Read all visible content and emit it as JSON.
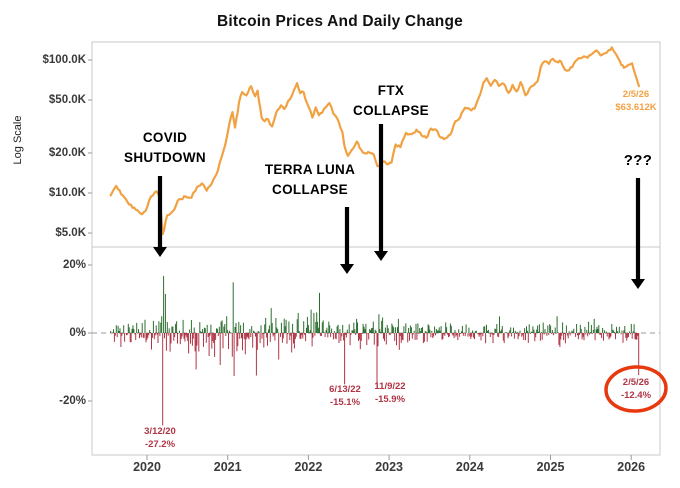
{
  "title": "Bitcoin Prices And Daily Change",
  "axes": {
    "y_label": "Log Scale",
    "price_ticks": [
      {
        "label": "$100.0K",
        "value": 100
      },
      {
        "label": "$50.0K",
        "value": 50
      },
      {
        "label": "$20.0K",
        "value": 20
      },
      {
        "label": "$10.0K",
        "value": 10
      },
      {
        "label": "$5.0K",
        "value": 5
      }
    ],
    "pct_ticks": [
      {
        "label": "20%",
        "value": 20
      },
      {
        "label": "0%",
        "value": 0
      },
      {
        "label": "-20%",
        "value": -20
      }
    ],
    "x_ticks": [
      "2020",
      "2021",
      "2022",
      "2023",
      "2024",
      "2025",
      "2026"
    ]
  },
  "annotations": {
    "covid": "COVID\nSHUTDOWN",
    "terra": "TERRA LUNA\nCOLLAPSE",
    "ftx": "FTX\nCOLLAPSE",
    "unknown": "???",
    "latest_price": "2/5/26\n$63.612K",
    "crash1": "3/12/20\n-27.2%",
    "crash2": "6/13/22\n-15.1%",
    "crash3": "11/9/22\n-15.9%",
    "crash4": "2/5/26\n-12.4%"
  },
  "colors": {
    "price_line": "#f0a243",
    "gain_bar": "#2c6e2f",
    "loss_bar": "#b03545",
    "highlight_circle": "#e8380d",
    "annotation_red": "#b03545",
    "annotation_orange": "#f0a243",
    "frame": "#c8c8c8",
    "zero_line": "#999999"
  },
  "chart_data": {
    "type": "line+bar",
    "title": "Bitcoin Prices And Daily Change",
    "x_unit": "decimal year",
    "x_range": [
      2019.55,
      2026.15
    ],
    "price_axis": {
      "scale": "log",
      "unit": "USD thousands",
      "ticks": [
        100,
        50,
        20,
        10,
        5
      ]
    },
    "pct_axis": {
      "ticks": [
        20,
        0,
        -20
      ],
      "range": [
        -30,
        22
      ]
    },
    "latest": {
      "date": "2/5/26",
      "price_usd_k": 63.612,
      "daily_change_pct": -12.4
    },
    "labeled_points": [
      {
        "date": "3/12/20",
        "daily_change_pct": -27.2
      },
      {
        "date": "6/13/22",
        "daily_change_pct": -15.1
      },
      {
        "date": "11/9/22",
        "daily_change_pct": -15.9
      },
      {
        "date": "2/5/26",
        "daily_change_pct": -12.4
      }
    ],
    "price_series": [
      [
        2019.55,
        9.6
      ],
      [
        2019.62,
        11.3
      ],
      [
        2019.7,
        9.6
      ],
      [
        2019.78,
        8.2
      ],
      [
        2019.86,
        7.5
      ],
      [
        2019.92,
        7.0
      ],
      [
        2019.98,
        7.3
      ],
      [
        2020.05,
        9.4
      ],
      [
        2020.12,
        10.3
      ],
      [
        2020.16,
        9.1
      ],
      [
        2020.194,
        4.9
      ],
      [
        2020.25,
        6.8
      ],
      [
        2020.32,
        7.3
      ],
      [
        2020.4,
        9.0
      ],
      [
        2020.48,
        9.4
      ],
      [
        2020.55,
        9.2
      ],
      [
        2020.62,
        11.1
      ],
      [
        2020.68,
        11.8
      ],
      [
        2020.74,
        10.4
      ],
      [
        2020.8,
        11.7
      ],
      [
        2020.86,
        13.8
      ],
      [
        2020.92,
        18.2
      ],
      [
        2020.97,
        23.1
      ],
      [
        2021.02,
        33.0
      ],
      [
        2021.06,
        40.6
      ],
      [
        2021.09,
        31.0
      ],
      [
        2021.14,
        48.0
      ],
      [
        2021.18,
        57.4
      ],
      [
        2021.23,
        54.1
      ],
      [
        2021.29,
        63.5
      ],
      [
        2021.34,
        53.3
      ],
      [
        2021.37,
        58.9
      ],
      [
        2021.42,
        37.0
      ],
      [
        2021.46,
        34.6
      ],
      [
        2021.5,
        35.8
      ],
      [
        2021.55,
        31.6
      ],
      [
        2021.6,
        39.9
      ],
      [
        2021.66,
        45.6
      ],
      [
        2021.7,
        42.8
      ],
      [
        2021.75,
        49.3
      ],
      [
        2021.8,
        54.9
      ],
      [
        2021.86,
        66.9
      ],
      [
        2021.9,
        56.3
      ],
      [
        2021.94,
        57.3
      ],
      [
        2021.99,
        46.2
      ],
      [
        2022.05,
        36.9
      ],
      [
        2022.09,
        44.0
      ],
      [
        2022.13,
        38.4
      ],
      [
        2022.17,
        40.0
      ],
      [
        2022.22,
        44.5
      ],
      [
        2022.26,
        47.4
      ],
      [
        2022.31,
        39.5
      ],
      [
        2022.36,
        36.0
      ],
      [
        2022.42,
        29.0
      ],
      [
        2022.447,
        22.5
      ],
      [
        2022.49,
        19.0
      ],
      [
        2022.54,
        21.2
      ],
      [
        2022.6,
        24.4
      ],
      [
        2022.65,
        21.3
      ],
      [
        2022.7,
        19.9
      ],
      [
        2022.76,
        20.1
      ],
      [
        2022.81,
        19.4
      ],
      [
        2022.855,
        15.9
      ],
      [
        2022.92,
        17.2
      ],
      [
        2022.97,
        16.5
      ],
      [
        2023.03,
        16.9
      ],
      [
        2023.08,
        23.2
      ],
      [
        2023.14,
        22.1
      ],
      [
        2023.21,
        28.3
      ],
      [
        2023.28,
        27.7
      ],
      [
        2023.34,
        29.9
      ],
      [
        2023.4,
        27.2
      ],
      [
        2023.46,
        26.0
      ],
      [
        2023.52,
        30.5
      ],
      [
        2023.58,
        29.9
      ],
      [
        2023.64,
        26.1
      ],
      [
        2023.7,
        25.8
      ],
      [
        2023.76,
        27.5
      ],
      [
        2023.82,
        34.6
      ],
      [
        2023.88,
        36.9
      ],
      [
        2023.94,
        43.8
      ],
      [
        2024.0,
        42.6
      ],
      [
        2024.06,
        43.1
      ],
      [
        2024.11,
        52.0
      ],
      [
        2024.17,
        68.0
      ],
      [
        2024.21,
        73.1
      ],
      [
        2024.26,
        64.0
      ],
      [
        2024.31,
        70.9
      ],
      [
        2024.36,
        63.8
      ],
      [
        2024.42,
        66.3
      ],
      [
        2024.48,
        56.6
      ],
      [
        2024.53,
        65.0
      ],
      [
        2024.58,
        58.1
      ],
      [
        2024.63,
        68.2
      ],
      [
        2024.69,
        54.3
      ],
      [
        2024.74,
        61.0
      ],
      [
        2024.79,
        64.3
      ],
      [
        2024.84,
        69.4
      ],
      [
        2024.88,
        88.7
      ],
      [
        2024.93,
        98.0
      ],
      [
        2024.98,
        93.4
      ],
      [
        2025.03,
        102.1
      ],
      [
        2025.08,
        96.9
      ],
      [
        2025.13,
        97.5
      ],
      [
        2025.18,
        84.3
      ],
      [
        2025.23,
        83.7
      ],
      [
        2025.29,
        94.3
      ],
      [
        2025.35,
        103.3
      ],
      [
        2025.41,
        106.2
      ],
      [
        2025.46,
        103.8
      ],
      [
        2025.52,
        111.7
      ],
      [
        2025.57,
        118.0
      ],
      [
        2025.62,
        108.2
      ],
      [
        2025.67,
        112.0
      ],
      [
        2025.72,
        118.5
      ],
      [
        2025.76,
        124.3
      ],
      [
        2025.81,
        111.0
      ],
      [
        2025.86,
        98.0
      ],
      [
        2025.91,
        87.3
      ],
      [
        2025.96,
        91.4
      ],
      [
        2026.01,
        94.5
      ],
      [
        2026.05,
        78.2
      ],
      [
        2026.096,
        63.612
      ]
    ],
    "daily_change": {
      "seed": 11,
      "step_years": 0.0115,
      "volatility_eras": [
        [
          2020.15,
          3.0
        ],
        [
          2021.0,
          4.5
        ],
        [
          2022.0,
          4.2
        ],
        [
          2023.3,
          3.3
        ],
        [
          2026.3,
          2.1
        ]
      ],
      "key_bars": [
        [
          2020.194,
          -27.2
        ],
        [
          2020.205,
          16.8
        ],
        [
          2020.232,
          11.5
        ],
        [
          2021.066,
          14.9
        ],
        [
          2021.352,
          -12.5
        ],
        [
          2022.14,
          11.8
        ],
        [
          2022.447,
          -15.1
        ],
        [
          2022.855,
          -15.9
        ],
        [
          2026.096,
          -12.4
        ]
      ]
    }
  }
}
